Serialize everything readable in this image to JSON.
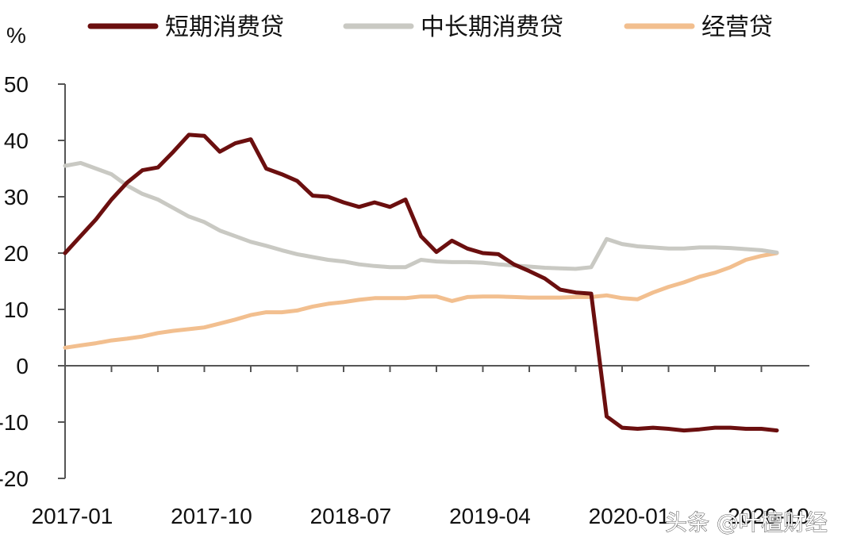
{
  "chart_data": {
    "type": "line",
    "ylabel": "%",
    "ylim": [
      -20,
      50
    ],
    "yticks": [
      -20,
      -10,
      0,
      10,
      20,
      30,
      40,
      50
    ],
    "xtick_labels": [
      "2017-01",
      "2017-10",
      "2018-07",
      "2019-04",
      "2020-01",
      "2020-10"
    ],
    "grid": false,
    "legend_position": "top",
    "x": [
      "2017-01",
      "2017-02",
      "2017-03",
      "2017-04",
      "2017-05",
      "2017-06",
      "2017-07",
      "2017-08",
      "2017-09",
      "2017-10",
      "2017-11",
      "2017-12",
      "2018-01",
      "2018-02",
      "2018-03",
      "2018-04",
      "2018-05",
      "2018-06",
      "2018-07",
      "2018-08",
      "2018-09",
      "2018-10",
      "2018-11",
      "2018-12",
      "2019-01",
      "2019-02",
      "2019-03",
      "2019-04",
      "2019-05",
      "2019-06",
      "2019-07",
      "2019-08",
      "2019-09",
      "2019-10",
      "2019-11",
      "2019-12",
      "2020-01",
      "2020-02",
      "2020-03",
      "2020-04",
      "2020-05",
      "2020-06",
      "2020-07",
      "2020-08",
      "2020-09",
      "2020-10",
      "2020-11"
    ],
    "series": [
      {
        "name": "短期消费贷",
        "color": "#6b0f0f",
        "values": [
          20.0,
          23.0,
          26.0,
          29.5,
          32.5,
          34.7,
          35.2,
          38.0,
          41.0,
          40.8,
          38.0,
          39.5,
          40.2,
          35.0,
          34.0,
          32.8,
          30.2,
          30.0,
          29.0,
          28.2,
          29.0,
          28.2,
          29.5,
          23.0,
          20.2,
          22.2,
          20.8,
          20.0,
          19.8,
          18.0,
          16.8,
          15.5,
          13.5,
          13.0,
          12.8,
          -9.0,
          -11.0,
          -11.2,
          -11.0,
          -11.2,
          -11.5,
          -11.3,
          -11.0,
          -11.0,
          -11.2,
          -11.2,
          -11.5
        ]
      },
      {
        "name": "中长期消费贷",
        "color": "#c9c9c3",
        "values": [
          35.5,
          36.0,
          35.0,
          34.0,
          32.0,
          30.5,
          29.5,
          28.0,
          26.5,
          25.5,
          24.0,
          23.0,
          22.0,
          21.3,
          20.5,
          19.8,
          19.3,
          18.8,
          18.5,
          18.0,
          17.7,
          17.5,
          17.5,
          18.8,
          18.5,
          18.4,
          18.4,
          18.3,
          18.0,
          17.8,
          17.6,
          17.4,
          17.3,
          17.2,
          17.5,
          22.5,
          21.6,
          21.2,
          21.0,
          20.8,
          20.8,
          21.0,
          21.0,
          20.9,
          20.7,
          20.5,
          20.1
        ]
      },
      {
        "name": "经营贷",
        "color": "#f2bf8f",
        "values": [
          3.2,
          3.6,
          4.0,
          4.5,
          4.8,
          5.2,
          5.8,
          6.2,
          6.5,
          6.8,
          7.5,
          8.2,
          9.0,
          9.5,
          9.5,
          9.8,
          10.5,
          11.0,
          11.3,
          11.7,
          12.0,
          12.0,
          12.0,
          12.3,
          12.3,
          11.5,
          12.2,
          12.3,
          12.3,
          12.2,
          12.1,
          12.1,
          12.1,
          12.2,
          12.2,
          12.5,
          12.0,
          11.8,
          13.0,
          14.0,
          14.8,
          15.8,
          16.5,
          17.5,
          18.8,
          19.5,
          20.0
        ]
      }
    ]
  },
  "watermark": "头条 @叶檀财经"
}
